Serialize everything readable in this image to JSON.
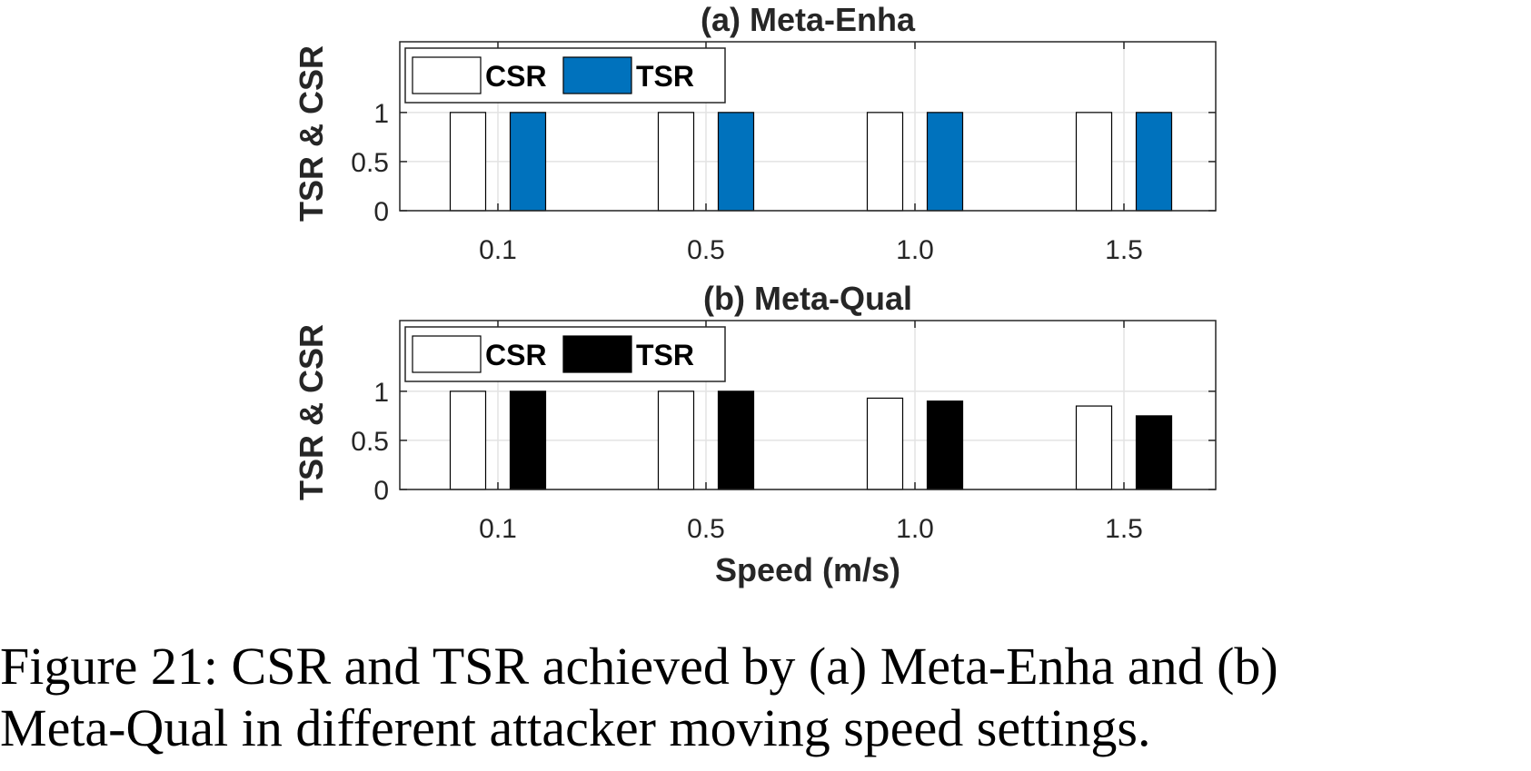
{
  "chart_data": [
    {
      "type": "bar",
      "title": "(a) Meta-Enha",
      "xlabel": "",
      "ylabel": "TSR & CSR",
      "categories": [
        "0.1",
        "0.5",
        "1.0",
        "1.5"
      ],
      "yticks": [
        "0",
        "0.5",
        "1"
      ],
      "ylim": [
        0,
        1.72
      ],
      "grid": true,
      "legend_position": "top-left",
      "series": [
        {
          "name": "CSR",
          "color": "#ffffff",
          "values": [
            1.0,
            1.0,
            1.0,
            1.0
          ]
        },
        {
          "name": "TSR",
          "color": "#0072bd",
          "values": [
            1.0,
            1.0,
            1.0,
            1.0
          ]
        }
      ]
    },
    {
      "type": "bar",
      "title": "(b) Meta-Qual",
      "xlabel": "Speed (m/s)",
      "ylabel": "TSR & CSR",
      "categories": [
        "0.1",
        "0.5",
        "1.0",
        "1.5"
      ],
      "yticks": [
        "0",
        "0.5",
        "1"
      ],
      "ylim": [
        0,
        1.72
      ],
      "grid": true,
      "legend_position": "top-left",
      "series": [
        {
          "name": "CSR",
          "color": "#ffffff",
          "values": [
            1.0,
            1.0,
            0.93,
            0.85
          ]
        },
        {
          "name": "TSR",
          "color": "#000000",
          "values": [
            1.0,
            1.0,
            0.9,
            0.75
          ]
        }
      ]
    }
  ],
  "caption": {
    "line1": "Figure 21: CSR and TSR achieved by (a) Meta-Enha and (b)",
    "line2": "Meta-Qual in different attacker moving speed settings."
  }
}
